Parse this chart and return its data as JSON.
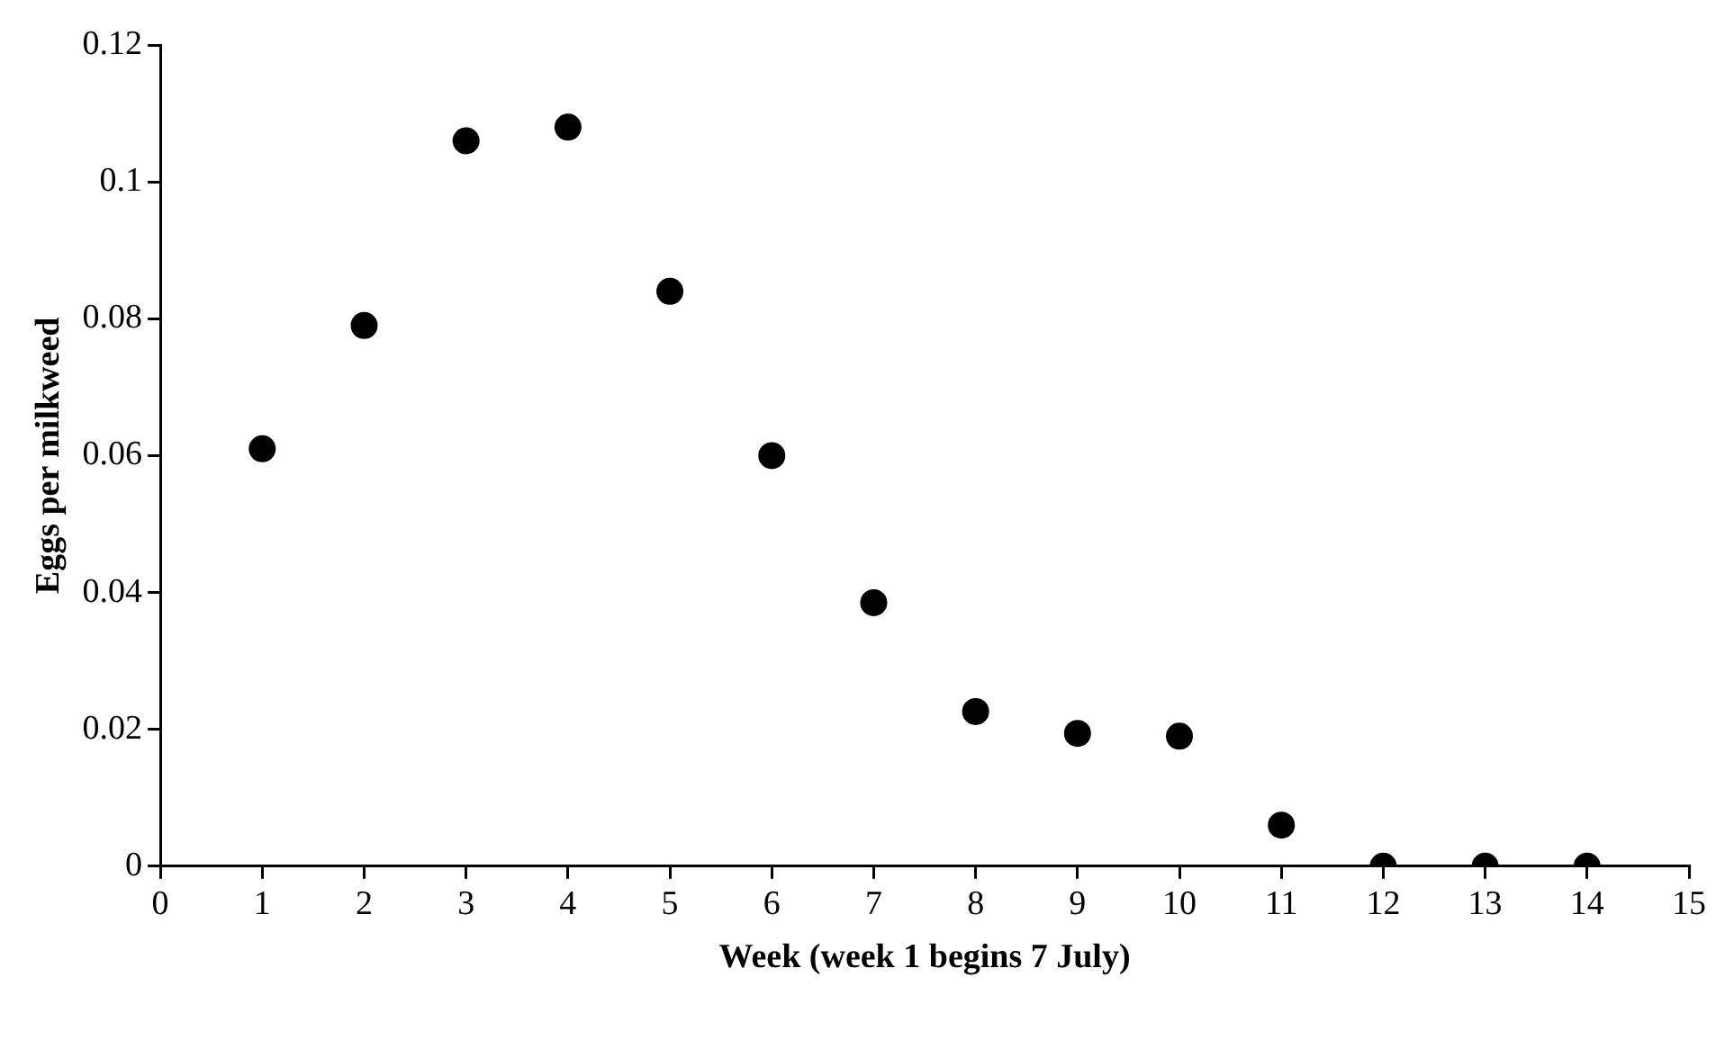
{
  "chart_data": {
    "type": "scatter",
    "xlabel": "Week (week 1 begins 7 July)",
    "ylabel": "Eggs per milkweed",
    "x": [
      1,
      2,
      3,
      4,
      5,
      6,
      7,
      8,
      9,
      10,
      11,
      12,
      13,
      14
    ],
    "series": [
      {
        "color": "#000000",
        "values": [
          0.061,
          0.079,
          0.106,
          0.108,
          0.084,
          0.06,
          0.0385,
          0.0226,
          0.0194,
          0.019,
          0.006,
          0,
          0,
          0
        ]
      }
    ],
    "xlim": [
      0,
      15
    ],
    "xticks": [
      0,
      1,
      2,
      3,
      4,
      5,
      6,
      7,
      8,
      9,
      10,
      11,
      12,
      13,
      14,
      15
    ],
    "ylim": [
      0,
      0.12
    ],
    "yticks": [
      0,
      0.02,
      0.04,
      0.06,
      0.08,
      0.1,
      0.12
    ],
    "grid": false,
    "legend": false,
    "marker": "circle"
  }
}
